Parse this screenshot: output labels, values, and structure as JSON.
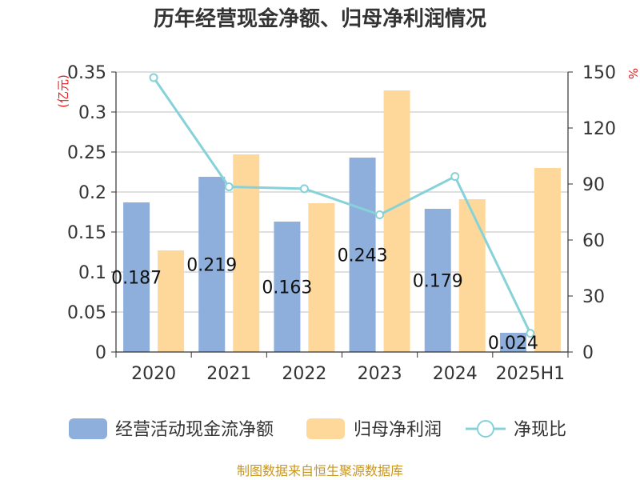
{
  "chart_data": {
    "type": "bar",
    "title": "历年经营现金净额、归母净利润情况",
    "categories": [
      "2020",
      "2021",
      "2022",
      "2023",
      "2024",
      "2025H1"
    ],
    "series": [
      {
        "name": "经营活动现金流净额",
        "type": "bar",
        "axis": "left",
        "color": "#8eaedb",
        "values": [
          0.187,
          0.219,
          0.163,
          0.243,
          0.179,
          0.024
        ],
        "labels": [
          "0.187",
          "0.219",
          "0.163",
          "0.243",
          "0.179",
          "0.024"
        ]
      },
      {
        "name": "归母净利润",
        "type": "bar",
        "axis": "left",
        "color": "#fdd89a",
        "values": [
          0.127,
          0.247,
          0.186,
          0.327,
          0.191,
          0.23
        ]
      },
      {
        "name": "净现比",
        "type": "line",
        "axis": "right",
        "color": "#86d2d8",
        "values": [
          147,
          88.5,
          87.5,
          73.5,
          94,
          10
        ]
      }
    ],
    "y_left": {
      "unit": "(亿元)",
      "ylim": [
        0,
        0.35
      ],
      "ticks": [
        0,
        0.05,
        0.1,
        0.15,
        0.2,
        0.25,
        0.3,
        0.35
      ],
      "tick_labels": [
        "0",
        "0.05",
        "0.1",
        "0.15",
        "0.2",
        "0.25",
        "0.3",
        "0.35"
      ]
    },
    "y_right": {
      "unit": "%",
      "ylim": [
        0,
        150
      ],
      "ticks": [
        0,
        30,
        60,
        90,
        120,
        150
      ],
      "tick_labels": [
        "0",
        "30",
        "60",
        "90",
        "120",
        "150"
      ]
    },
    "grid": true,
    "legend_position": "bottom"
  },
  "footer": {
    "source": "制图数据来自恒生聚源数据库"
  }
}
